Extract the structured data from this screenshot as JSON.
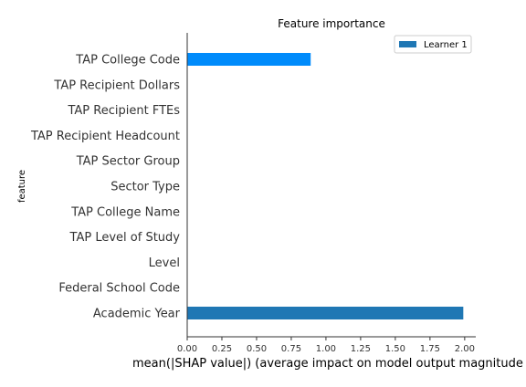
{
  "chart_data": {
    "type": "bar",
    "orientation": "horizontal",
    "title": "Feature importance",
    "xlabel": "mean(|SHAP value|) (average impact on model output magnitude",
    "ylabel": "feature",
    "categories": [
      "TAP College Code",
      "TAP Recipient Dollars",
      "TAP Recipient FTEs",
      "TAP Recipient Headcount",
      "TAP Sector Group",
      "Sector Type",
      "TAP College Name",
      "TAP Level of Study",
      "Level",
      "Federal School Code",
      "Academic Year"
    ],
    "series": [
      {
        "name": "Learner 1",
        "values": [
          0.89,
          0,
          0,
          0,
          0,
          0,
          0,
          0,
          0,
          0,
          1.99
        ]
      }
    ],
    "bar_colors": [
      "#008bfb",
      "#1f77b4",
      "#1f77b4",
      "#1f77b4",
      "#1f77b4",
      "#1f77b4",
      "#1f77b4",
      "#1f77b4",
      "#1f77b4",
      "#1f77b4",
      "#1f77b4"
    ],
    "legend_color": "#1f77b4",
    "xlim": [
      0,
      2.08
    ],
    "xticks": [
      "0.00",
      "0.25",
      "0.50",
      "0.75",
      "1.00",
      "1.25",
      "1.50",
      "1.75",
      "2.00"
    ],
    "legend_position": "top-right",
    "grid": false
  }
}
